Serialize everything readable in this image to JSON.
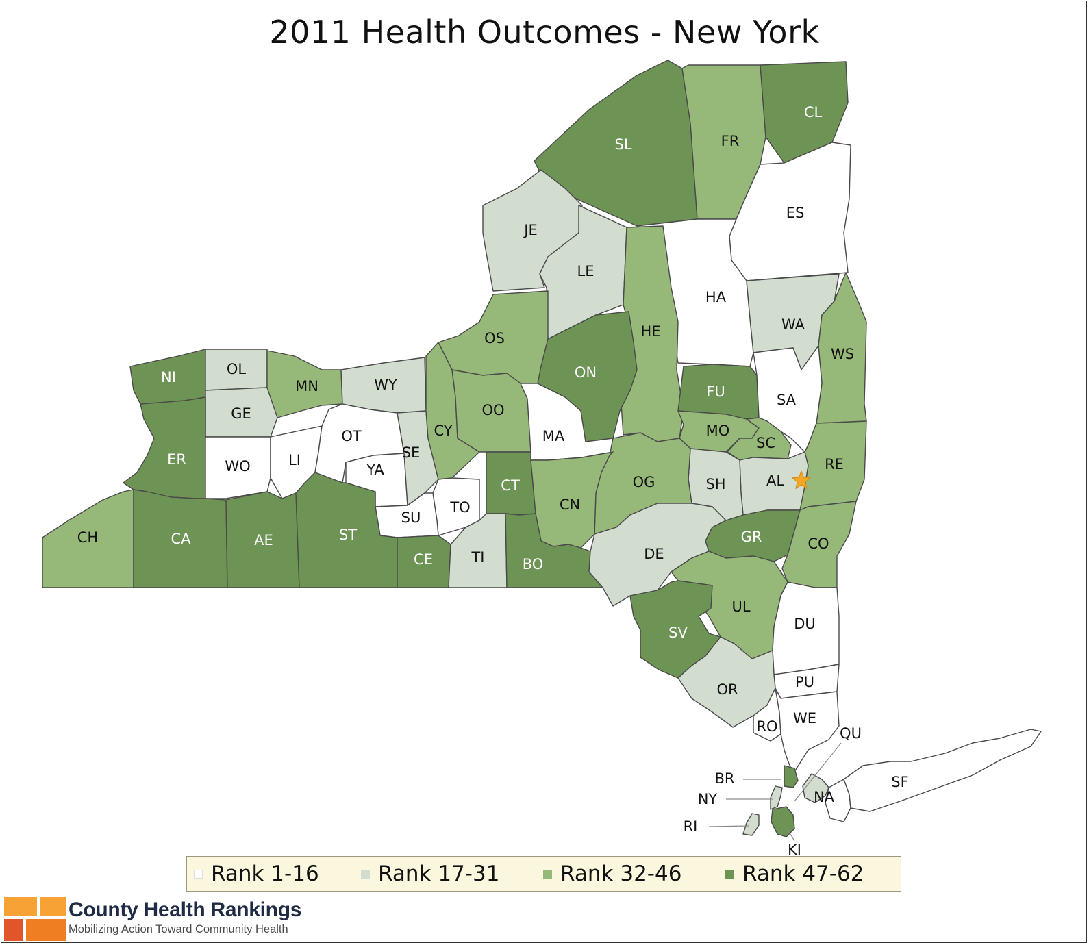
{
  "title": "2011 Health Outcomes - New York",
  "colors": {
    "rank_1_16": "#ffffff",
    "rank_17_31": "#d2ddd0",
    "rank_32_46": "#96b97a",
    "rank_47_62": "#6e9455",
    "star": "#f5a623"
  },
  "legend": [
    {
      "label": "Rank 1-16",
      "color": "#ffffff"
    },
    {
      "label": "Rank 17-31",
      "color": "#d2ddd0"
    },
    {
      "label": "Rank 32-46",
      "color": "#96b97a"
    },
    {
      "label": "Rank 47-62",
      "color": "#6e9455"
    }
  ],
  "counties": [
    {
      "code": "SL",
      "rank_group": "47-62"
    },
    {
      "code": "FR",
      "rank_group": "32-46"
    },
    {
      "code": "CL",
      "rank_group": "47-62"
    },
    {
      "code": "ES",
      "rank_group": "1-16"
    },
    {
      "code": "JE",
      "rank_group": "17-31"
    },
    {
      "code": "LE",
      "rank_group": "17-31"
    },
    {
      "code": "HA",
      "rank_group": "1-16"
    },
    {
      "code": "HE",
      "rank_group": "32-46"
    },
    {
      "code": "WA",
      "rank_group": "17-31"
    },
    {
      "code": "WS",
      "rank_group": "32-46"
    },
    {
      "code": "OS",
      "rank_group": "32-46"
    },
    {
      "code": "ON",
      "rank_group": "47-62"
    },
    {
      "code": "NI",
      "rank_group": "47-62"
    },
    {
      "code": "OL",
      "rank_group": "17-31"
    },
    {
      "code": "MN",
      "rank_group": "32-46"
    },
    {
      "code": "WY",
      "rank_group": "17-31"
    },
    {
      "code": "GE",
      "rank_group": "17-31"
    },
    {
      "code": "ER",
      "rank_group": "47-62"
    },
    {
      "code": "WO",
      "rank_group": "1-16"
    },
    {
      "code": "LI",
      "rank_group": "1-16"
    },
    {
      "code": "OT",
      "rank_group": "1-16"
    },
    {
      "code": "YA",
      "rank_group": "1-16"
    },
    {
      "code": "SE",
      "rank_group": "17-31"
    },
    {
      "code": "CY",
      "rank_group": "32-46"
    },
    {
      "code": "OO",
      "rank_group": "32-46"
    },
    {
      "code": "MA",
      "rank_group": "1-16"
    },
    {
      "code": "FU",
      "rank_group": "47-62"
    },
    {
      "code": "SA",
      "rank_group": "1-16"
    },
    {
      "code": "MO",
      "rank_group": "32-46"
    },
    {
      "code": "SC",
      "rank_group": "32-46"
    },
    {
      "code": "RE",
      "rank_group": "32-46"
    },
    {
      "code": "AL",
      "rank_group": "17-31"
    },
    {
      "code": "SH",
      "rank_group": "17-31"
    },
    {
      "code": "OG",
      "rank_group": "32-46"
    },
    {
      "code": "CT",
      "rank_group": "47-62"
    },
    {
      "code": "CN",
      "rank_group": "32-46"
    },
    {
      "code": "TO",
      "rank_group": "1-16"
    },
    {
      "code": "SU",
      "rank_group": "1-16"
    },
    {
      "code": "CH",
      "rank_group": "32-46"
    },
    {
      "code": "CA",
      "rank_group": "47-62"
    },
    {
      "code": "AE",
      "rank_group": "47-62"
    },
    {
      "code": "ST",
      "rank_group": "47-62"
    },
    {
      "code": "CE",
      "rank_group": "47-62"
    },
    {
      "code": "TI",
      "rank_group": "17-31"
    },
    {
      "code": "BO",
      "rank_group": "47-62"
    },
    {
      "code": "DE",
      "rank_group": "17-31"
    },
    {
      "code": "GR",
      "rank_group": "47-62"
    },
    {
      "code": "CO",
      "rank_group": "32-46"
    },
    {
      "code": "UL",
      "rank_group": "32-46"
    },
    {
      "code": "SV",
      "rank_group": "47-62"
    },
    {
      "code": "DU",
      "rank_group": "1-16"
    },
    {
      "code": "PU",
      "rank_group": "1-16"
    },
    {
      "code": "OR",
      "rank_group": "17-31"
    },
    {
      "code": "RO",
      "rank_group": "1-16"
    },
    {
      "code": "WE",
      "rank_group": "1-16"
    },
    {
      "code": "QU",
      "rank_group": "17-31"
    },
    {
      "code": "BR",
      "rank_group": "47-62"
    },
    {
      "code": "NY",
      "rank_group": "17-31"
    },
    {
      "code": "NA",
      "rank_group": "1-16"
    },
    {
      "code": "SF",
      "rank_group": "1-16"
    },
    {
      "code": "RI",
      "rank_group": "17-31"
    },
    {
      "code": "KI",
      "rank_group": "47-62"
    }
  ],
  "capital_marker": {
    "county": "AL",
    "icon": "star-icon"
  },
  "branding": {
    "name": "County Health Rankings",
    "tagline": "Mobilizing Action Toward Community Health",
    "logo_colors": [
      "#f7a234",
      "#ef7d22",
      "#e0562a"
    ]
  }
}
